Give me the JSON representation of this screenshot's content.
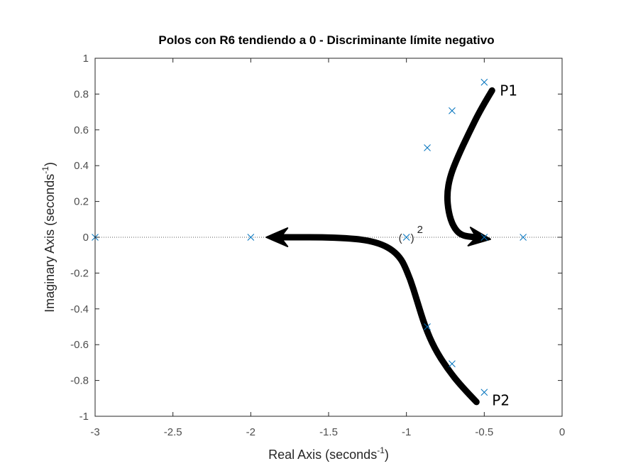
{
  "chart_data": {
    "type": "scatter",
    "title": "Polos con R6 tendiendo a 0 - Discriminante límite negativo",
    "xlabel": "Real Axis (seconds",
    "xlabel_sup": "-1",
    "xlabel_end": ")",
    "ylabel": "Imaginary Axis (seconds",
    "ylabel_sup": "-1",
    "ylabel_end": ")",
    "xlim": [
      -3,
      0
    ],
    "ylim": [
      -1,
      1
    ],
    "xticks": [
      -3,
      -2.5,
      -2,
      -1.5,
      -1,
      -0.5,
      0
    ],
    "xtick_labels": [
      "-3",
      "-2.5",
      "-2",
      "-1.5",
      "-1",
      "-0.5",
      "0"
    ],
    "yticks": [
      -1,
      -0.8,
      -0.6,
      -0.4,
      -0.2,
      0,
      0.2,
      0.4,
      0.6,
      0.8,
      1
    ],
    "ytick_labels": [
      "-1",
      "-0.8",
      "-0.6",
      "-0.4",
      "-0.2",
      "0",
      "0.2",
      "0.4",
      "0.6",
      "0.8",
      "1"
    ],
    "grid": false,
    "marker_color": "#0072bd",
    "arrow_color": "#000000",
    "zero_line": "dotted",
    "poles": [
      {
        "x": -3,
        "y": 0
      },
      {
        "x": -2,
        "y": 0
      },
      {
        "x": -1,
        "y": 0
      },
      {
        "x": -0.5,
        "y": 0
      },
      {
        "x": -0.25,
        "y": 0
      },
      {
        "x": -0.866,
        "y": 0.5
      },
      {
        "x": -0.707,
        "y": 0.707
      },
      {
        "x": -0.5,
        "y": 0.866
      },
      {
        "x": -0.866,
        "y": -0.5
      },
      {
        "x": -0.707,
        "y": -0.707
      },
      {
        "x": -0.5,
        "y": -0.866
      }
    ],
    "multiplicity_annotation": {
      "x": -1,
      "y": 0,
      "open": "(",
      "close": ")",
      "sup": "2"
    },
    "paths": [
      {
        "name": "P1",
        "points": [
          [
            -0.45,
            0.82
          ],
          [
            -0.52,
            0.72
          ],
          [
            -0.6,
            0.58
          ],
          [
            -0.67,
            0.45
          ],
          [
            -0.72,
            0.34
          ],
          [
            -0.74,
            0.24
          ],
          [
            -0.73,
            0.14
          ],
          [
            -0.7,
            0.06
          ],
          [
            -0.65,
            0.01
          ],
          [
            -0.56,
            0.0
          ]
        ],
        "label": "P1",
        "label_at": [
          -0.4,
          0.82
        ]
      },
      {
        "name": "P2",
        "points": [
          [
            -0.55,
            -0.92
          ],
          [
            -0.65,
            -0.83
          ],
          [
            -0.74,
            -0.73
          ],
          [
            -0.82,
            -0.62
          ],
          [
            -0.88,
            -0.5
          ],
          [
            -0.93,
            -0.36
          ],
          [
            -0.98,
            -0.22
          ],
          [
            -1.05,
            -0.09
          ],
          [
            -1.2,
            -0.02
          ],
          [
            -1.45,
            0.0
          ],
          [
            -1.8,
            0.0
          ]
        ],
        "label": "P2",
        "label_at": [
          -0.45,
          -0.91
        ]
      }
    ]
  }
}
